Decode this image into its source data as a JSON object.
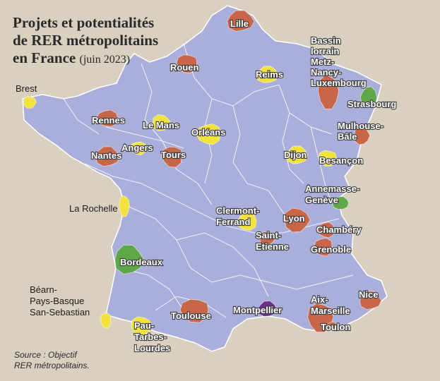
{
  "title": {
    "line1": "Projets et potentialités",
    "line2": "de RER métropolitains",
    "line3": "en France",
    "note": "(juin 2023)"
  },
  "source": {
    "line1": "Source : Objectif",
    "line2": "RER métropolitains."
  },
  "colors": {
    "background": "#d9d0c0",
    "map_fill": "#a9aedb",
    "map_border": "#ffffff",
    "red": "#c8664a",
    "yellow": "#f2e33c",
    "green": "#5fa84a",
    "purple": "#6c2f8c"
  },
  "cities": [
    {
      "id": "lille",
      "label_lines": [
        "Lille"
      ],
      "status": "red"
    },
    {
      "id": "rouen",
      "label_lines": [
        "Rouen"
      ],
      "status": "red"
    },
    {
      "id": "reims",
      "label_lines": [
        "Reims"
      ],
      "status": "yellow"
    },
    {
      "id": "metz",
      "label_lines": [
        "Bassin",
        "lorrain",
        "Metz-",
        "Nancy-",
        "Luxembourg"
      ],
      "status": "red"
    },
    {
      "id": "strasbourg",
      "label_lines": [
        "Strasbourg"
      ],
      "status": "green"
    },
    {
      "id": "brest",
      "label_lines": [
        "Brest"
      ],
      "status": "yellow"
    },
    {
      "id": "rennes",
      "label_lines": [
        "Rennes"
      ],
      "status": "red"
    },
    {
      "id": "lemans",
      "label_lines": [
        "Le Mans"
      ],
      "status": "yellow"
    },
    {
      "id": "orleans",
      "label_lines": [
        "Orléans"
      ],
      "status": "yellow"
    },
    {
      "id": "mulhouse",
      "label_lines": [
        "Mulhouse-",
        "Bâle"
      ],
      "status": "red"
    },
    {
      "id": "angers",
      "label_lines": [
        "Angers"
      ],
      "status": "yellow"
    },
    {
      "id": "nantes",
      "label_lines": [
        "Nantes"
      ],
      "status": "red"
    },
    {
      "id": "tours",
      "label_lines": [
        "Tours"
      ],
      "status": "red"
    },
    {
      "id": "dijon",
      "label_lines": [
        "Dijon"
      ],
      "status": "yellow"
    },
    {
      "id": "besancon",
      "label_lines": [
        "Besançon"
      ],
      "status": "yellow"
    },
    {
      "id": "annemasse",
      "label_lines": [
        "Annemasse-",
        "Genève"
      ],
      "status": "green"
    },
    {
      "id": "larochelle",
      "label_lines": [
        "La Rochelle"
      ],
      "status": "yellow"
    },
    {
      "id": "clermont",
      "label_lines": [
        "Clermont-",
        "Ferrand"
      ],
      "status": "yellow"
    },
    {
      "id": "lyon",
      "label_lines": [
        "Lyon"
      ],
      "status": "red"
    },
    {
      "id": "chambery",
      "label_lines": [
        "Chambéry"
      ],
      "status": "red"
    },
    {
      "id": "sainteti",
      "label_lines": [
        "Saint-",
        "Etienne"
      ],
      "status": "red"
    },
    {
      "id": "grenoble",
      "label_lines": [
        "Grenoble"
      ],
      "status": "red"
    },
    {
      "id": "bordeaux",
      "label_lines": [
        "Bordeaux"
      ],
      "status": "green"
    },
    {
      "id": "bearn",
      "label_lines": [
        "Béarn-",
        "Pays-Basque",
        "San-Sebastian"
      ],
      "status": "yellow"
    },
    {
      "id": "nice",
      "label_lines": [
        "Nice"
      ],
      "status": "red"
    },
    {
      "id": "toulouse",
      "label_lines": [
        "Toulouse"
      ],
      "status": "red"
    },
    {
      "id": "montpellier",
      "label_lines": [
        "Montpellier"
      ],
      "status": "purple"
    },
    {
      "id": "aixmarseille",
      "label_lines": [
        "Aix-",
        "Marseille"
      ],
      "status": "red"
    },
    {
      "id": "toulon",
      "label_lines": [
        "Toulon"
      ],
      "status": "red"
    },
    {
      "id": "pau",
      "label_lines": [
        "Pau-",
        "Tarbes-",
        "Lourdes"
      ],
      "status": "yellow"
    }
  ]
}
